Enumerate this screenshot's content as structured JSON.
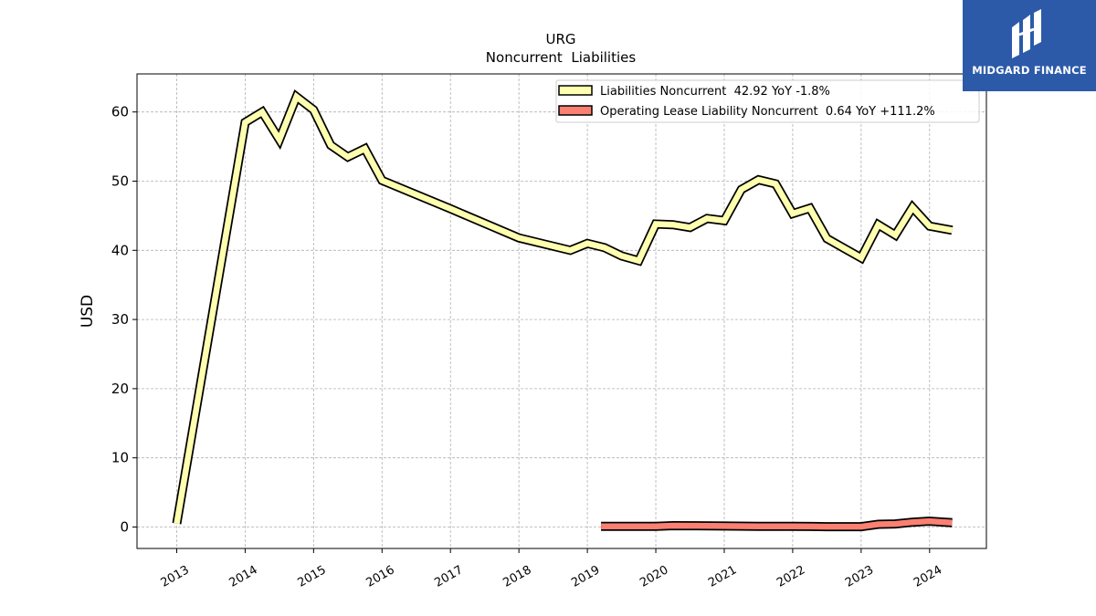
{
  "brand": {
    "name": "MIDGARD FINANCE",
    "logo_icon": "midgard-mark-icon",
    "background": "#2c5aa9"
  },
  "chart_data": {
    "type": "line",
    "title": "URG",
    "subtitle": "Noncurrent  Liabilities",
    "xlabel": "",
    "ylabel": "USD",
    "ylim": [
      -3.1,
      65.5
    ],
    "yticks": [
      0,
      10,
      20,
      30,
      40,
      50,
      60
    ],
    "xlim": [
      2012.42,
      2024.83
    ],
    "xticks": [
      2013,
      2014,
      2015,
      2016,
      2017,
      2018,
      2019,
      2020,
      2021,
      2022,
      2023,
      2024
    ],
    "grid": true,
    "legend_position": "top-right",
    "series": [
      {
        "name": "Liabilities Noncurrent  42.92 YoY -1.8%",
        "color": "#ffffb0",
        "x": [
          2013.0,
          2014.0,
          2014.25,
          2014.5,
          2014.75,
          2015.0,
          2015.25,
          2015.5,
          2015.75,
          2016.0,
          2017.0,
          2018.0,
          2018.75,
          2019.0,
          2019.25,
          2019.5,
          2019.75,
          2020.0,
          2020.25,
          2020.5,
          2020.75,
          2021.0,
          2021.25,
          2021.5,
          2021.75,
          2022.0,
          2022.25,
          2022.5,
          2022.75,
          2023.0,
          2023.25,
          2023.5,
          2023.75,
          2024.0,
          2024.33
        ],
        "y": [
          0.5,
          58.5,
          60.0,
          56.0,
          62.2,
          60.3,
          55.2,
          53.5,
          54.7,
          50.1,
          46.0,
          41.8,
          40.0,
          41.0,
          40.4,
          39.2,
          38.5,
          43.8,
          43.7,
          43.3,
          44.6,
          44.3,
          48.8,
          50.2,
          49.6,
          45.3,
          46.1,
          41.7,
          40.3,
          38.9,
          43.7,
          42.2,
          46.2,
          43.5,
          42.9
        ]
      },
      {
        "name": "Operating Lease Liability Noncurrent  0.64 YoY +111.2%",
        "color": "#fa8072",
        "x": [
          2019.2,
          2019.5,
          2020.0,
          2020.25,
          2021.0,
          2021.5,
          2022.0,
          2022.5,
          2023.0,
          2023.25,
          2023.5,
          2023.75,
          2024.0,
          2024.33
        ],
        "y": [
          0.1,
          0.1,
          0.1,
          0.2,
          0.15,
          0.1,
          0.1,
          0.05,
          0.05,
          0.4,
          0.45,
          0.7,
          0.85,
          0.64
        ]
      }
    ]
  }
}
